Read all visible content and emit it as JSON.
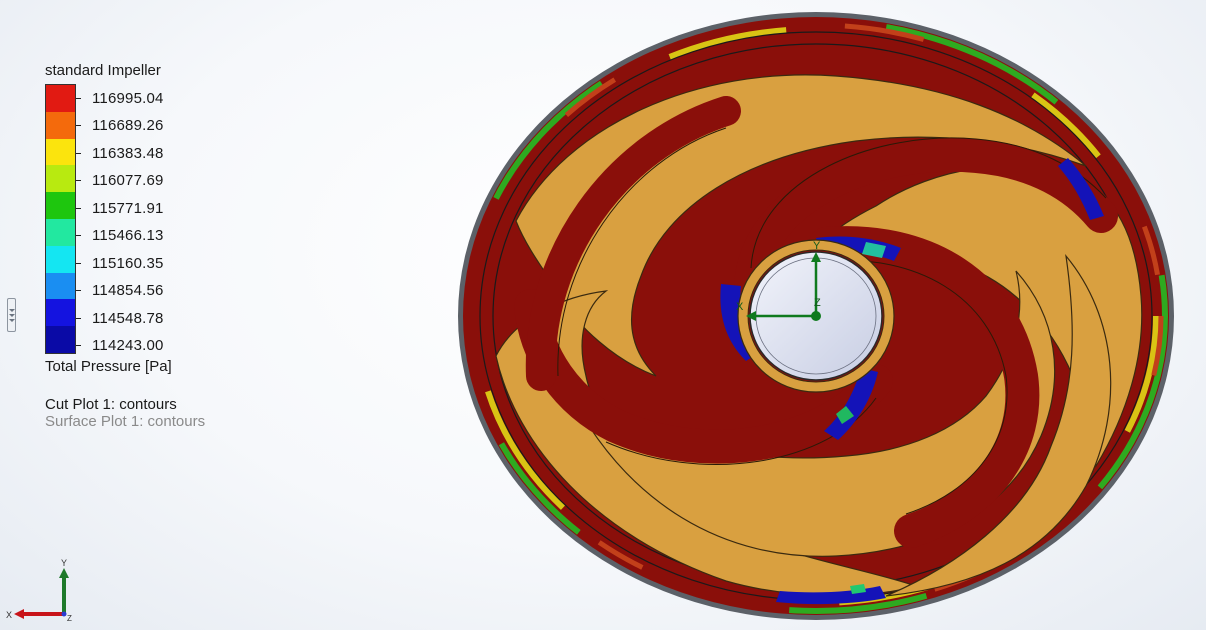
{
  "legend": {
    "title": "standard Impeller",
    "values": [
      "116995.04",
      "116689.26",
      "116383.48",
      "116077.69",
      "115771.91",
      "115466.13",
      "115160.35",
      "114854.56",
      "114548.78",
      "114243.00"
    ],
    "colors": [
      "#e11a12",
      "#f46a0c",
      "#fbe40d",
      "#b8ea10",
      "#1ec60e",
      "#22e8a0",
      "#14e6f2",
      "#1a8ef2",
      "#1413e0",
      "#0a0aa6"
    ],
    "units": "Total Pressure [Pa]"
  },
  "plots": {
    "cut_plot": "Cut Plot 1: contours",
    "surface_plot": "Surface Plot 1: contours"
  },
  "triad": {
    "x_label": "X",
    "y_label": "Y",
    "z_label": "Z"
  },
  "model_triad": {
    "x_label": "X",
    "y_label": "Y",
    "z_label": "Z"
  },
  "colors": {
    "impeller_surface": "#d9a040",
    "high_pressure": "#8a0f0a",
    "hub": "#dfe3f2",
    "axis_green": "#0f7a1e"
  }
}
